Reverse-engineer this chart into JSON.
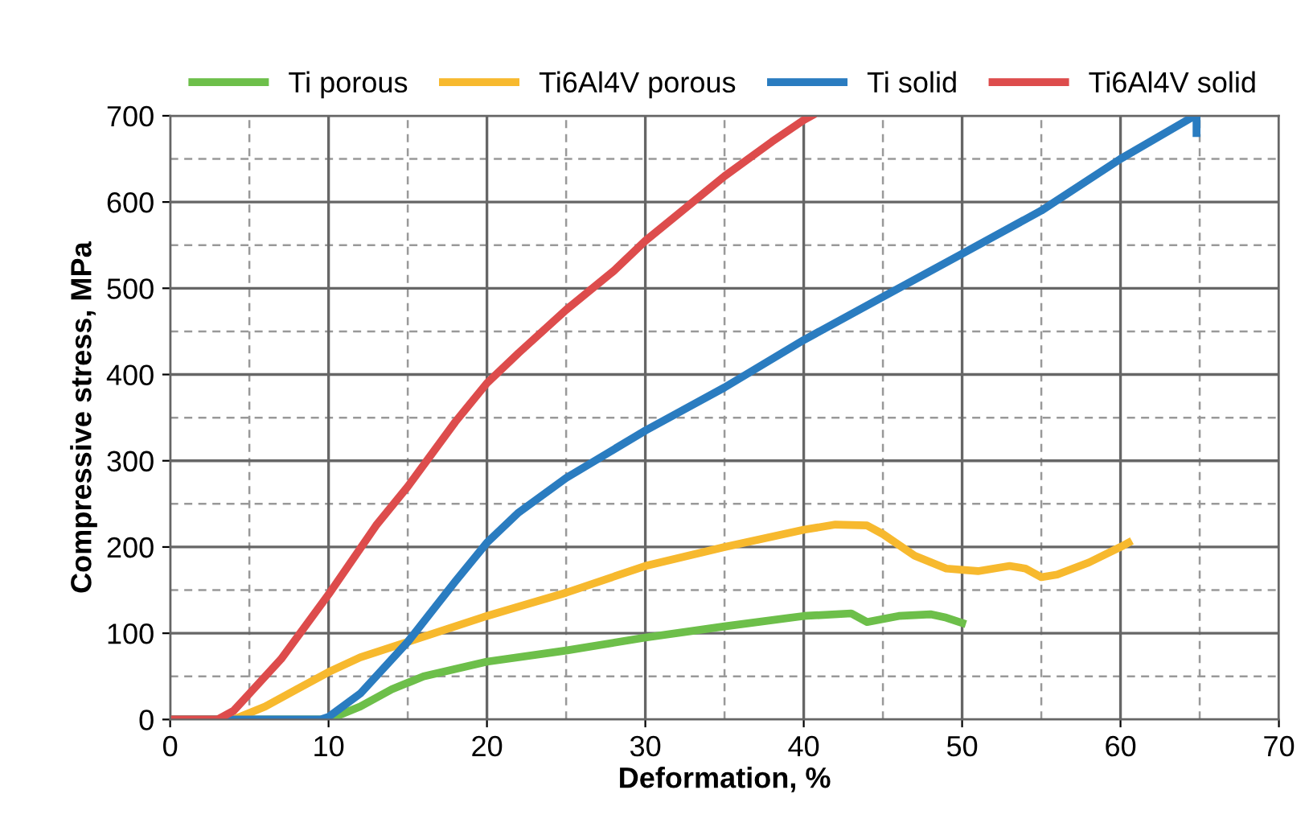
{
  "chart_data": {
    "type": "line",
    "xlabel": "Deformation, %",
    "ylabel": "Compressive stress, MPa",
    "xlim": [
      0,
      70
    ],
    "xticks": [
      0,
      10,
      20,
      30,
      40,
      50,
      60,
      70
    ],
    "ylim": [
      0,
      700
    ],
    "yticks": [
      0,
      100,
      200,
      300,
      400,
      500,
      600,
      700
    ],
    "grid": true,
    "legend": "top",
    "marker": "none",
    "line_style": "solid",
    "series": [
      {
        "name": "Ti porous",
        "color": "#6dbf4a",
        "x": [
          0,
          10,
          12,
          14,
          16,
          20,
          25,
          30,
          35,
          40,
          43,
          44,
          46,
          48,
          49,
          50
        ],
        "values": [
          0,
          0,
          15,
          35,
          50,
          67,
          80,
          95,
          108,
          120,
          123,
          113,
          120,
          122,
          118,
          112
        ]
      },
      {
        "name": "Ti6Al4V porous",
        "color": "#f7b92e",
        "x": [
          0,
          4,
          6,
          8,
          10,
          12,
          15,
          20,
          25,
          30,
          35,
          40,
          42,
          44,
          45,
          47,
          49,
          51,
          53,
          54,
          55,
          56,
          58,
          60,
          60.5
        ],
        "values": [
          0,
          0,
          15,
          35,
          55,
          72,
          90,
          120,
          147,
          178,
          200,
          220,
          226,
          225,
          215,
          190,
          175,
          172,
          178,
          175,
          165,
          168,
          182,
          200,
          205
        ]
      },
      {
        "name": "Ti solid",
        "color": "#2a7cc0",
        "x": [
          0,
          9.5,
          10,
          12,
          15,
          18,
          20,
          22,
          25,
          30,
          35,
          40,
          45,
          50,
          55,
          60,
          64.5,
          64.8,
          64.8
        ],
        "values": [
          0,
          0,
          3,
          30,
          90,
          160,
          205,
          240,
          280,
          335,
          385,
          440,
          490,
          540,
          590,
          650,
          698,
          700,
          680
        ]
      },
      {
        "name": "Ti6Al4V solid",
        "color": "#dd4c4c",
        "x": [
          0,
          3,
          4,
          5,
          7,
          10,
          13,
          15,
          18,
          20,
          22,
          25,
          28,
          30,
          33,
          35,
          38,
          40,
          40.5
        ],
        "values": [
          0,
          0,
          10,
          30,
          70,
          145,
          225,
          270,
          345,
          390,
          425,
          475,
          520,
          555,
          600,
          630,
          670,
          695,
          700
        ]
      }
    ]
  }
}
